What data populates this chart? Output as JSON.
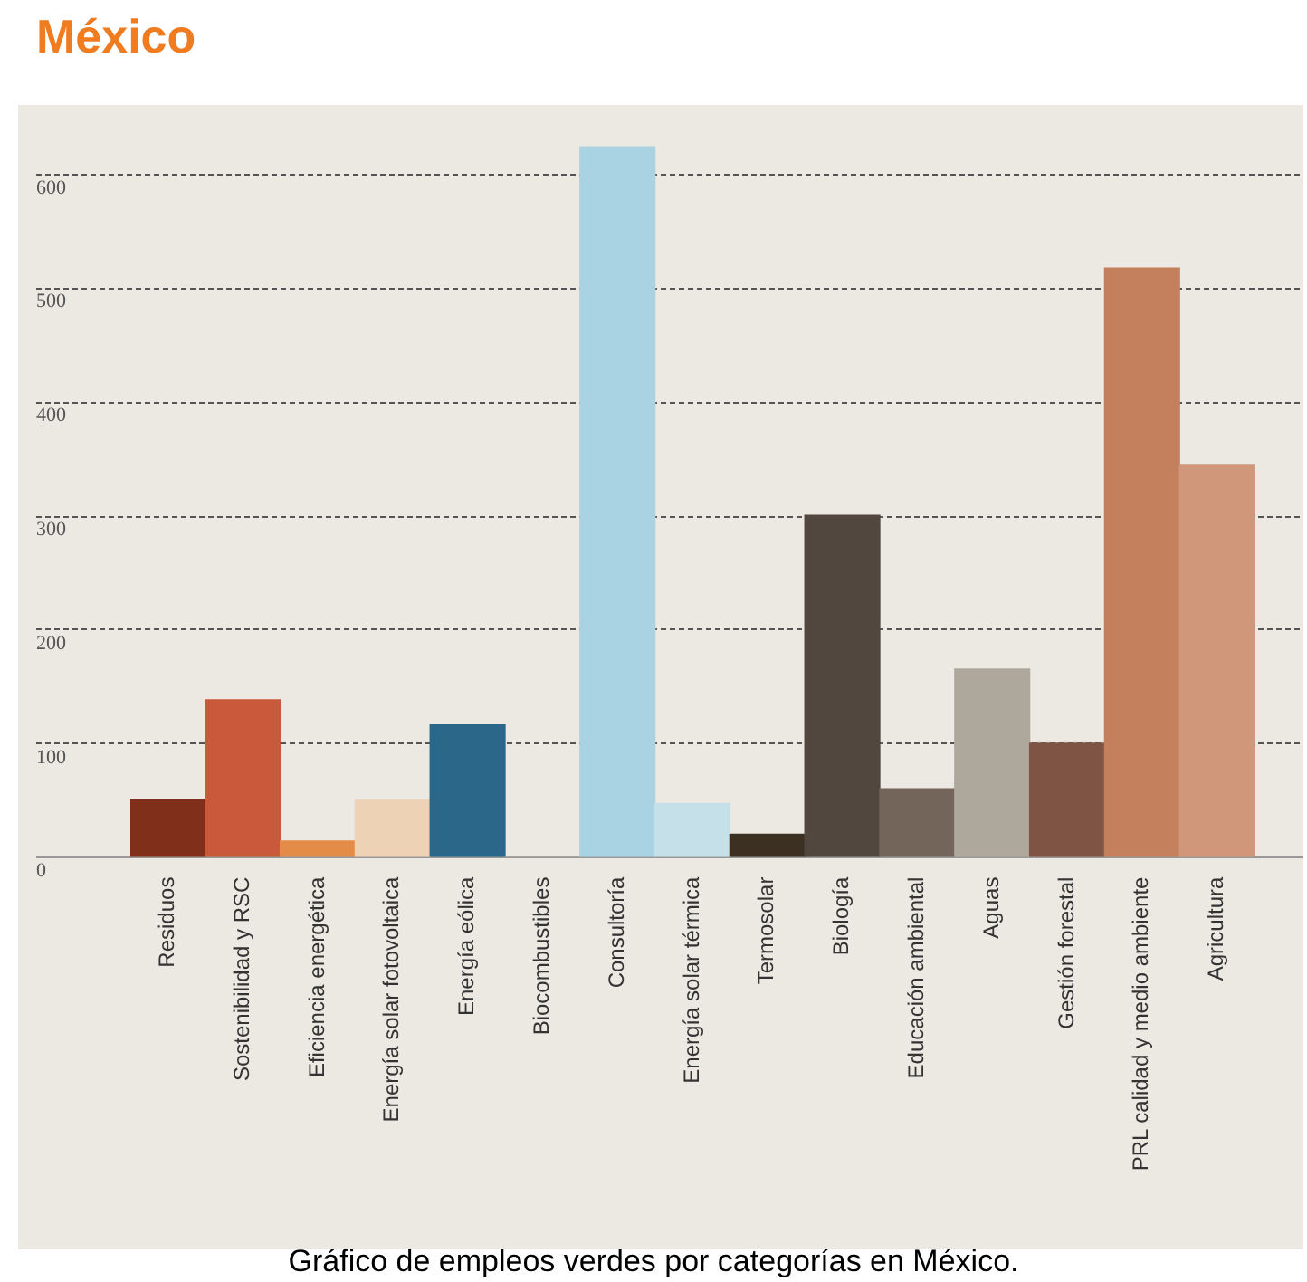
{
  "chart_data": {
    "type": "bar",
    "title": "México",
    "categories": [
      "Residuos",
      "Sostenibilidad y RSC",
      "Eficiencia energética",
      "Energía solar fotovoltaica",
      "Energía eólica",
      "Biocombustibles",
      "Consultoría",
      "Energía solar térmica",
      "Termosolar",
      "Biología",
      "Educación ambiental",
      "Aguas",
      "Gestión forestal",
      "PRL calidad y medio ambiente",
      "Agricultura"
    ],
    "values": [
      50,
      138,
      14,
      50,
      116,
      0,
      624,
      47,
      20,
      300,
      60,
      165,
      100,
      517,
      344
    ],
    "colors": [
      "#7f2f1a",
      "#c9593a",
      "#e38b47",
      "#edd2b5",
      "#2b6789",
      "#b3a89a",
      "#a9d3e3",
      "#c5e0e8",
      "#3b3022",
      "#51473f",
      "#74655a",
      "#aea79c",
      "#7f5444",
      "#c4805c",
      "#d0977a"
    ],
    "ylim": [
      0,
      624
    ],
    "yticks": [
      0,
      100,
      200,
      300,
      400,
      500,
      600
    ],
    "grid": "y",
    "legend": false,
    "annotations": [
      "Gráfico de empleos verdes por categorías en México."
    ]
  }
}
